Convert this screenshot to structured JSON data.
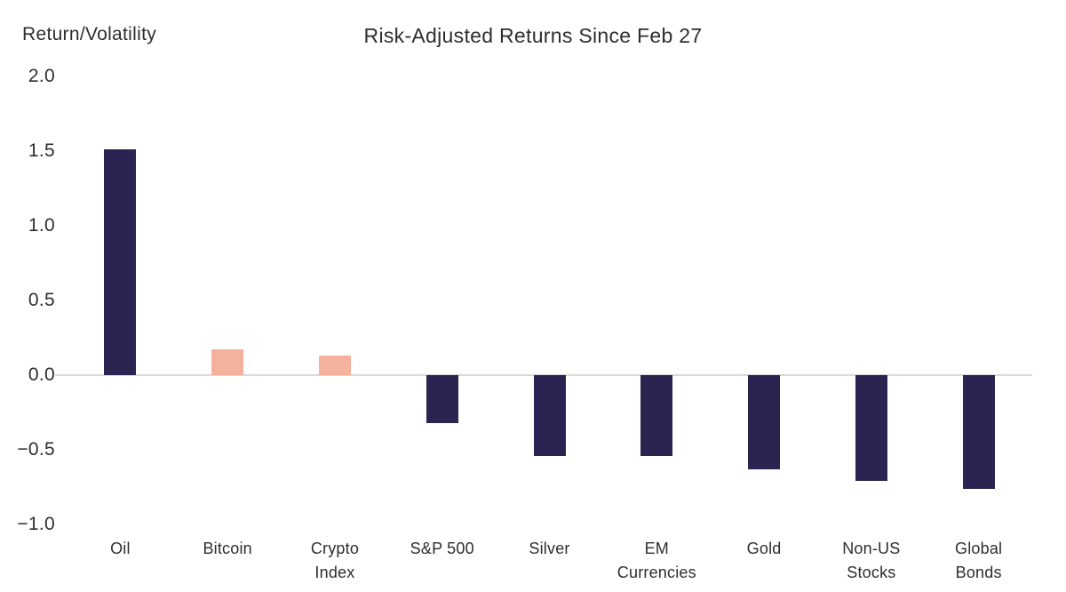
{
  "page": {
    "background": "#ffffff"
  },
  "chart_data": {
    "type": "bar",
    "title": "Risk-Adjusted Returns Since Feb 27",
    "ylabel": "Return/Volatility",
    "categories": [
      "Oil",
      "Bitcoin",
      "Crypto\nIndex",
      "S&P 500",
      "Silver",
      "EM\nCurrencies",
      "Gold",
      "Non-US\nStocks",
      "Global\nBonds"
    ],
    "values": [
      1.51,
      0.17,
      0.13,
      -0.32,
      -0.54,
      -0.54,
      -0.63,
      -0.71,
      -0.76
    ],
    "bar_colors": [
      "#2c2450",
      "#f4b19c",
      "#f4b19c",
      "#2c2450",
      "#2c2450",
      "#2c2450",
      "#2c2450",
      "#2c2450",
      "#2c2450"
    ],
    "yticks": [
      2.0,
      1.5,
      1.0,
      0.5,
      0.0,
      -0.5,
      -1.0
    ],
    "ylim": [
      -1.0,
      2.0
    ],
    "grid": "off",
    "legend": "off",
    "zero_line_color": "#d9d9d9",
    "navy_color": "#2c2450",
    "peach_color": "#f4b19c",
    "text_color": "#2e2e2e"
  }
}
